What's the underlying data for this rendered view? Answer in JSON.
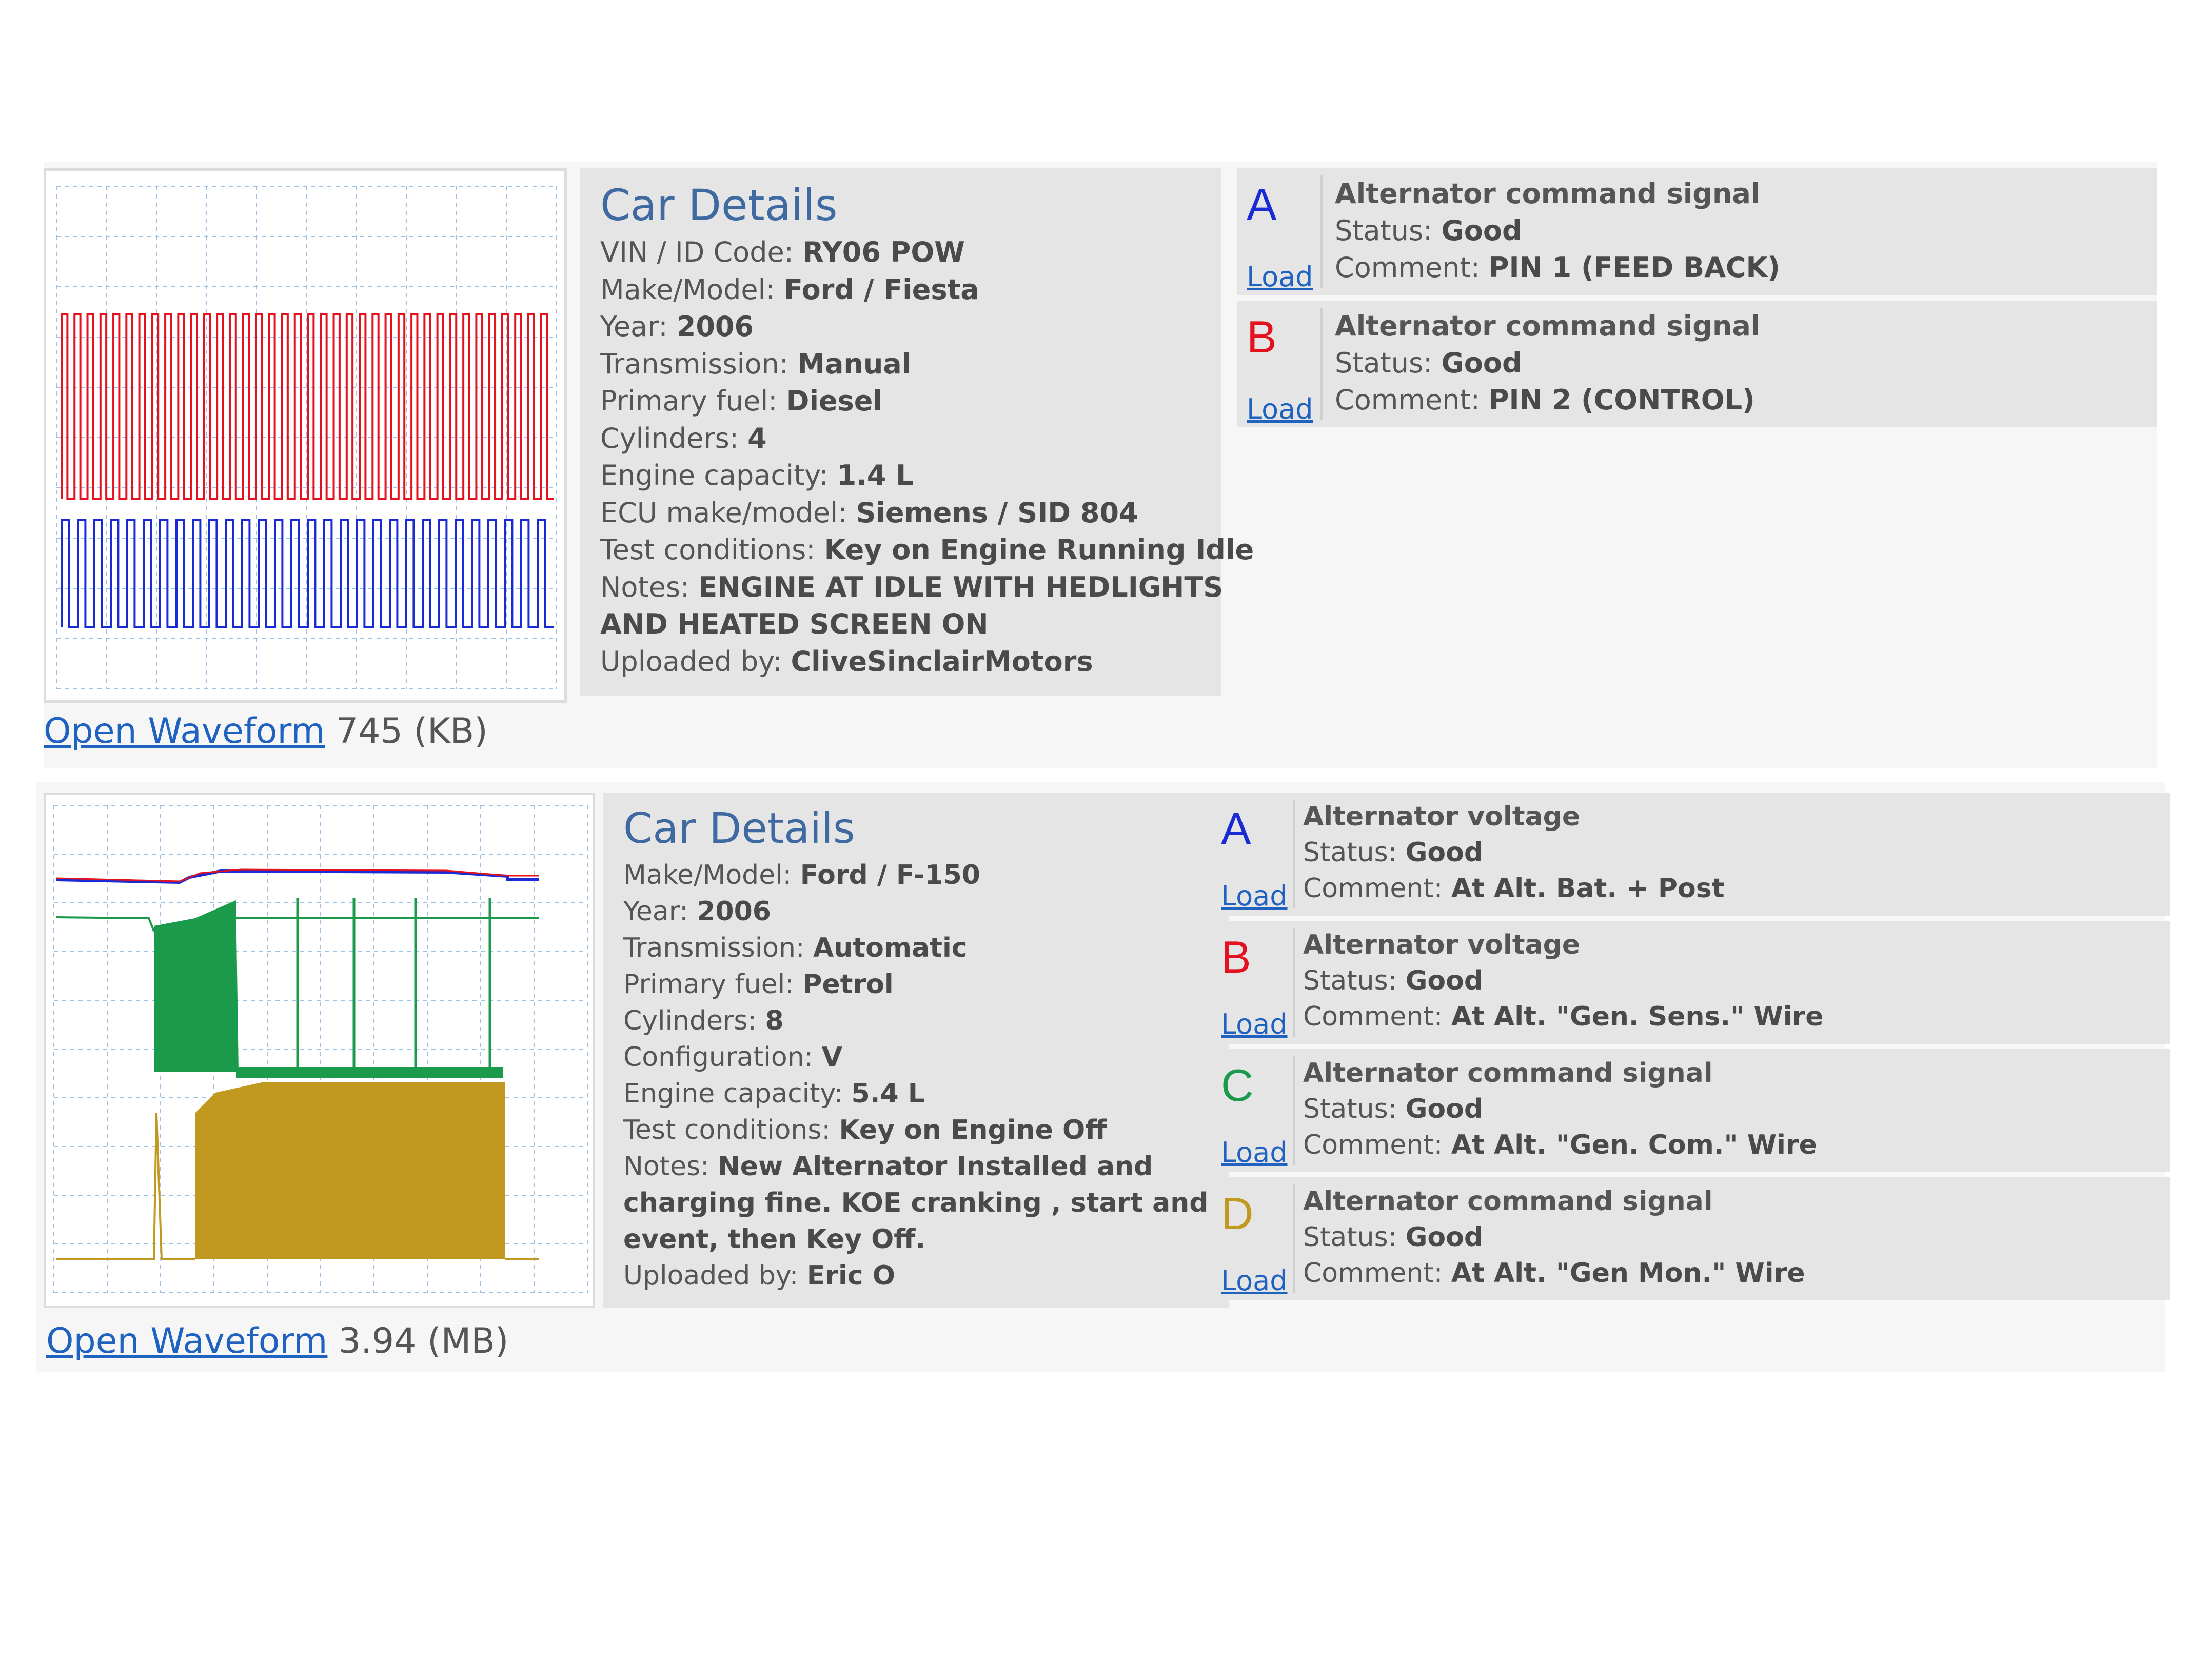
{
  "entries": [
    {
      "details_title": "Car Details",
      "rows": [
        {
          "label": "VIN / ID Code: ",
          "value": "RY06 POW"
        },
        {
          "label": "Make/Model: ",
          "value": "Ford / Fiesta"
        },
        {
          "label": "Year: ",
          "value": "2006"
        },
        {
          "label": "Transmission: ",
          "value": "Manual"
        },
        {
          "label": "Primary fuel: ",
          "value": "Diesel"
        },
        {
          "label": "Cylinders: ",
          "value": "4"
        },
        {
          "label": "Engine capacity: ",
          "value": "1.4 L"
        },
        {
          "label": "ECU make/model: ",
          "value": "Siemens / SID 804"
        },
        {
          "label": "Test conditions: ",
          "value": "Key on Engine Running Idle"
        },
        {
          "label": "Notes: ",
          "value": "ENGINE AT IDLE WITH HEDLIGHTS"
        },
        {
          "label": "",
          "value": "AND HEATED SCREEN ON"
        },
        {
          "label": "Uploaded by: ",
          "value": "CliveSinclairMotors"
        }
      ],
      "open_link": "Open Waveform",
      "size": "745 (KB)",
      "channels": [
        {
          "letter": "A",
          "color": "#1a2bd6",
          "load": "Load",
          "title": "Alternator command signal",
          "status_label": "Status: ",
          "status": "Good",
          "comment_label": "Comment: ",
          "comment": "PIN 1 (FEED BACK)"
        },
        {
          "letter": "B",
          "color": "#e3121e",
          "load": "Load",
          "title": "Alternator command signal",
          "status_label": "Status: ",
          "status": "Good",
          "comment_label": "Comment: ",
          "comment": "PIN 2 (CONTROL)"
        }
      ]
    },
    {
      "details_title": "Car Details",
      "rows": [
        {
          "label": "Make/Model: ",
          "value": "Ford / F-150"
        },
        {
          "label": "Year: ",
          "value": "2006"
        },
        {
          "label": "Transmission: ",
          "value": "Automatic"
        },
        {
          "label": "Primary fuel: ",
          "value": "Petrol"
        },
        {
          "label": "Cylinders: ",
          "value": "8"
        },
        {
          "label": "Configuration: ",
          "value": "V"
        },
        {
          "label": "Engine capacity: ",
          "value": "5.4 L"
        },
        {
          "label": "Test conditions: ",
          "value": "Key on Engine Off"
        },
        {
          "label": "Notes: ",
          "value": "New Alternator Installed and"
        },
        {
          "label": "",
          "value": "charging fine. KOE cranking , start and idle"
        },
        {
          "label": "",
          "value": "event, then Key Off."
        },
        {
          "label": "Uploaded by: ",
          "value": "Eric O"
        }
      ],
      "open_link": "Open Waveform",
      "size": "3.94 (MB)",
      "channels": [
        {
          "letter": "A",
          "color": "#1a2bd6",
          "load": "Load",
          "title": "Alternator voltage",
          "status_label": "Status: ",
          "status": "Good",
          "comment_label": "Comment: ",
          "comment": "At Alt. Bat. + Post"
        },
        {
          "letter": "B",
          "color": "#e3121e",
          "load": "Load",
          "title": "Alternator voltage",
          "status_label": "Status: ",
          "status": "Good",
          "comment_label": "Comment: ",
          "comment": "At Alt. \"Gen. Sens.\" Wire"
        },
        {
          "letter": "C",
          "color": "#1a9a4a",
          "load": "Load",
          "title": "Alternator command signal",
          "status_label": "Status: ",
          "status": "Good",
          "comment_label": "Comment: ",
          "comment": "At Alt. \"Gen. Com.\" Wire"
        },
        {
          "letter": "D",
          "color": "#c1991f",
          "load": "Load",
          "title": "Alternator command signal",
          "status_label": "Status: ",
          "status": "Good",
          "comment_label": "Comment: ",
          "comment": "At Alt. \"Gen Mon.\" Wire"
        }
      ]
    }
  ]
}
